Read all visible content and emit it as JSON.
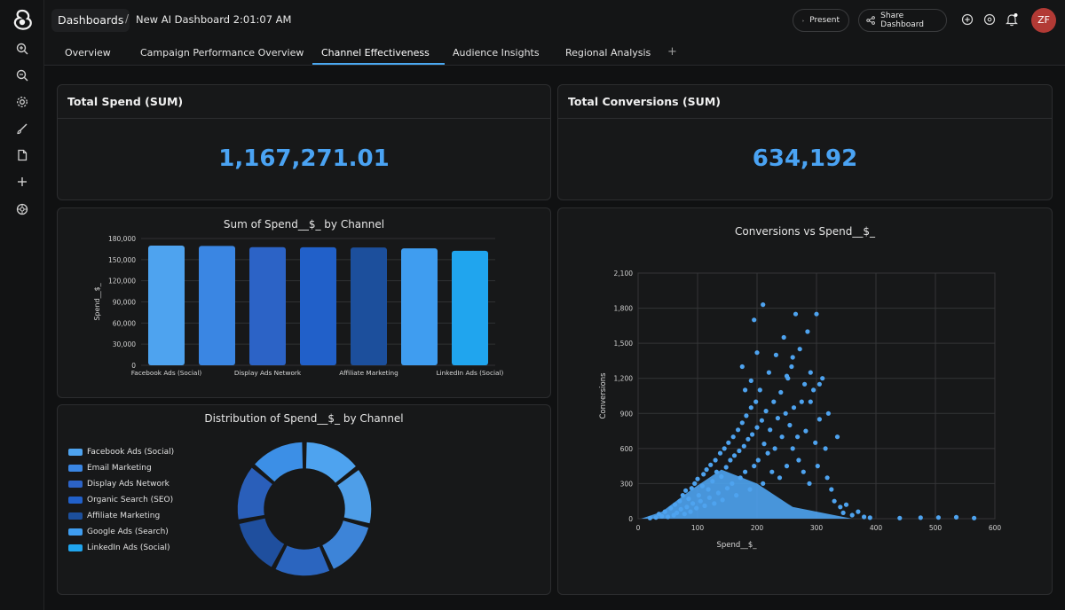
{
  "header": {
    "breadcrumb_root": "Dashboards",
    "separator": "/",
    "dashboard_title": "New AI Dashboard 2:01:07 AM",
    "present_label": "Present",
    "share_label": "Share Dashboard",
    "avatar_initials": "ZF"
  },
  "tabs": [
    {
      "label": "Overview"
    },
    {
      "label": "Campaign Performance Overview"
    },
    {
      "label": "Channel Effectiveness",
      "active": true
    },
    {
      "label": "Audience Insights"
    },
    {
      "label": "Regional Analysis"
    }
  ],
  "tab_add": "+",
  "kpis": {
    "spend": {
      "title": "Total Spend (SUM)",
      "value": "1,167,271.01"
    },
    "conversions": {
      "title": "Total Conversions (SUM)",
      "value": "634,192"
    }
  },
  "colors": {
    "accent": "#4aa3f3",
    "channels": [
      "#4ea3ef",
      "#3a86e3",
      "#2c63c6",
      "#2160c9",
      "#1c4f9c",
      "#3f9df0",
      "#20a5ee"
    ]
  },
  "chart_data": [
    {
      "type": "bar",
      "title": "Sum of Spend__$_ by Channel",
      "ylabel": "Spend__$_",
      "xlabel": "",
      "categories": [
        "Facebook Ads (Social)",
        "Email Marketing",
        "Display Ads Network",
        "Organic Search (SEO)",
        "Affiliate Marketing",
        "Google Ads (Search)",
        "LinkedIn Ads (Social)"
      ],
      "tick_labels_shown": [
        "Facebook Ads (Social)",
        "Display Ads Network",
        "Affiliate Marketing",
        "LinkedIn Ads (Social)"
      ],
      "values": [
        170000,
        169500,
        167800,
        167600,
        167200,
        166000,
        162500
      ],
      "ylim": [
        0,
        180000
      ],
      "yticks": [
        0,
        30000,
        60000,
        90000,
        120000,
        150000,
        180000
      ],
      "ytick_labels": [
        "0",
        "30,000",
        "60,000",
        "90,000",
        "120,000",
        "150,000",
        "180,000"
      ],
      "grid": true
    },
    {
      "type": "pie",
      "donut": true,
      "title": "Distribution of Spend__$_ by Channel",
      "labels": [
        "Facebook Ads (Social)",
        "Email Marketing",
        "Display Ads Network",
        "Organic Search (SEO)",
        "Affiliate Marketing",
        "Google Ads (Search)",
        "LinkedIn Ads (Social)"
      ],
      "values": [
        170000,
        169500,
        167800,
        167600,
        167200,
        166000,
        162500
      ],
      "legend": "left"
    },
    {
      "type": "scatter",
      "title": "Conversions vs Spend__$_",
      "xlabel": "Spend__$_",
      "ylabel": "Conversions",
      "xlim": [
        0,
        600
      ],
      "ylim": [
        0,
        2100
      ],
      "xticks": [
        0,
        100,
        200,
        300,
        400,
        500,
        600
      ],
      "yticks": [
        0,
        300,
        600,
        900,
        1200,
        1500,
        1800,
        2100
      ],
      "ytick_labels": [
        "0",
        "300",
        "600",
        "900",
        "1,200",
        "1,500",
        "1,800",
        "2,100"
      ],
      "grid": true,
      "points": [
        [
          20,
          5
        ],
        [
          30,
          10
        ],
        [
          35,
          40
        ],
        [
          40,
          20
        ],
        [
          45,
          60
        ],
        [
          50,
          15
        ],
        [
          55,
          90
        ],
        [
          60,
          30
        ],
        [
          62,
          120
        ],
        [
          65,
          50
        ],
        [
          70,
          150
        ],
        [
          72,
          80
        ],
        [
          75,
          200
        ],
        [
          78,
          40
        ],
        [
          80,
          240
        ],
        [
          82,
          100
        ],
        [
          85,
          170
        ],
        [
          88,
          60
        ],
        [
          90,
          260
        ],
        [
          92,
          130
        ],
        [
          95,
          300
        ],
        [
          98,
          90
        ],
        [
          100,
          340
        ],
        [
          102,
          200
        ],
        [
          105,
          150
        ],
        [
          108,
          280
        ],
        [
          110,
          380
        ],
        [
          112,
          110
        ],
        [
          115,
          420
        ],
        [
          118,
          250
        ],
        [
          120,
          180
        ],
        [
          122,
          460
        ],
        [
          125,
          320
        ],
        [
          128,
          130
        ],
        [
          130,
          500
        ],
        [
          132,
          400
        ],
        [
          135,
          220
        ],
        [
          138,
          560
        ],
        [
          140,
          360
        ],
        [
          142,
          160
        ],
        [
          145,
          600
        ],
        [
          148,
          440
        ],
        [
          150,
          260
        ],
        [
          152,
          650
        ],
        [
          155,
          500
        ],
        [
          158,
          300
        ],
        [
          160,
          700
        ],
        [
          162,
          540
        ],
        [
          165,
          200
        ],
        [
          168,
          760
        ],
        [
          170,
          580
        ],
        [
          172,
          350
        ],
        [
          175,
          820
        ],
        [
          178,
          620
        ],
        [
          180,
          400
        ],
        [
          182,
          880
        ],
        [
          185,
          680
        ],
        [
          188,
          250
        ],
        [
          190,
          950
        ],
        [
          192,
          720
        ],
        [
          195,
          450
        ],
        [
          198,
          1000
        ],
        [
          200,
          780
        ],
        [
          202,
          500
        ],
        [
          205,
          1100
        ],
        [
          208,
          840
        ],
        [
          210,
          300
        ],
        [
          212,
          640
        ],
        [
          215,
          920
        ],
        [
          218,
          560
        ],
        [
          220,
          1250
        ],
        [
          222,
          760
        ],
        [
          225,
          400
        ],
        [
          228,
          1000
        ],
        [
          230,
          600
        ],
        [
          232,
          1400
        ],
        [
          235,
          860
        ],
        [
          238,
          350
        ],
        [
          240,
          1080
        ],
        [
          242,
          700
        ],
        [
          245,
          1550
        ],
        [
          248,
          900
        ],
        [
          250,
          450
        ],
        [
          252,
          1200
        ],
        [
          255,
          800
        ],
        [
          258,
          1300
        ],
        [
          260,
          600
        ],
        [
          262,
          950
        ],
        [
          265,
          1750
        ],
        [
          268,
          700
        ],
        [
          270,
          500
        ],
        [
          272,
          1450
        ],
        [
          275,
          1000
        ],
        [
          278,
          400
        ],
        [
          280,
          1150
        ],
        [
          282,
          750
        ],
        [
          285,
          1600
        ],
        [
          288,
          300
        ],
        [
          290,
          1000
        ],
        [
          295,
          1100
        ],
        [
          298,
          650
        ],
        [
          300,
          1750
        ],
        [
          302,
          450
        ],
        [
          305,
          850
        ],
        [
          310,
          1200
        ],
        [
          315,
          600
        ],
        [
          318,
          350
        ],
        [
          320,
          900
        ],
        [
          325,
          250
        ],
        [
          330,
          150
        ],
        [
          335,
          700
        ],
        [
          340,
          100
        ],
        [
          345,
          50
        ],
        [
          350,
          120
        ],
        [
          360,
          30
        ],
        [
          370,
          60
        ],
        [
          380,
          15
        ],
        [
          390,
          8
        ],
        [
          440,
          5
        ],
        [
          475,
          8
        ],
        [
          505,
          10
        ],
        [
          535,
          12
        ],
        [
          565,
          5
        ],
        [
          190,
          1180
        ],
        [
          180,
          1100
        ],
        [
          290,
          1250
        ],
        [
          305,
          1150
        ],
        [
          175,
          1300
        ],
        [
          200,
          1420
        ],
        [
          210,
          1830
        ],
        [
          195,
          1700
        ],
        [
          250,
          1220
        ],
        [
          260,
          1380
        ]
      ]
    }
  ]
}
